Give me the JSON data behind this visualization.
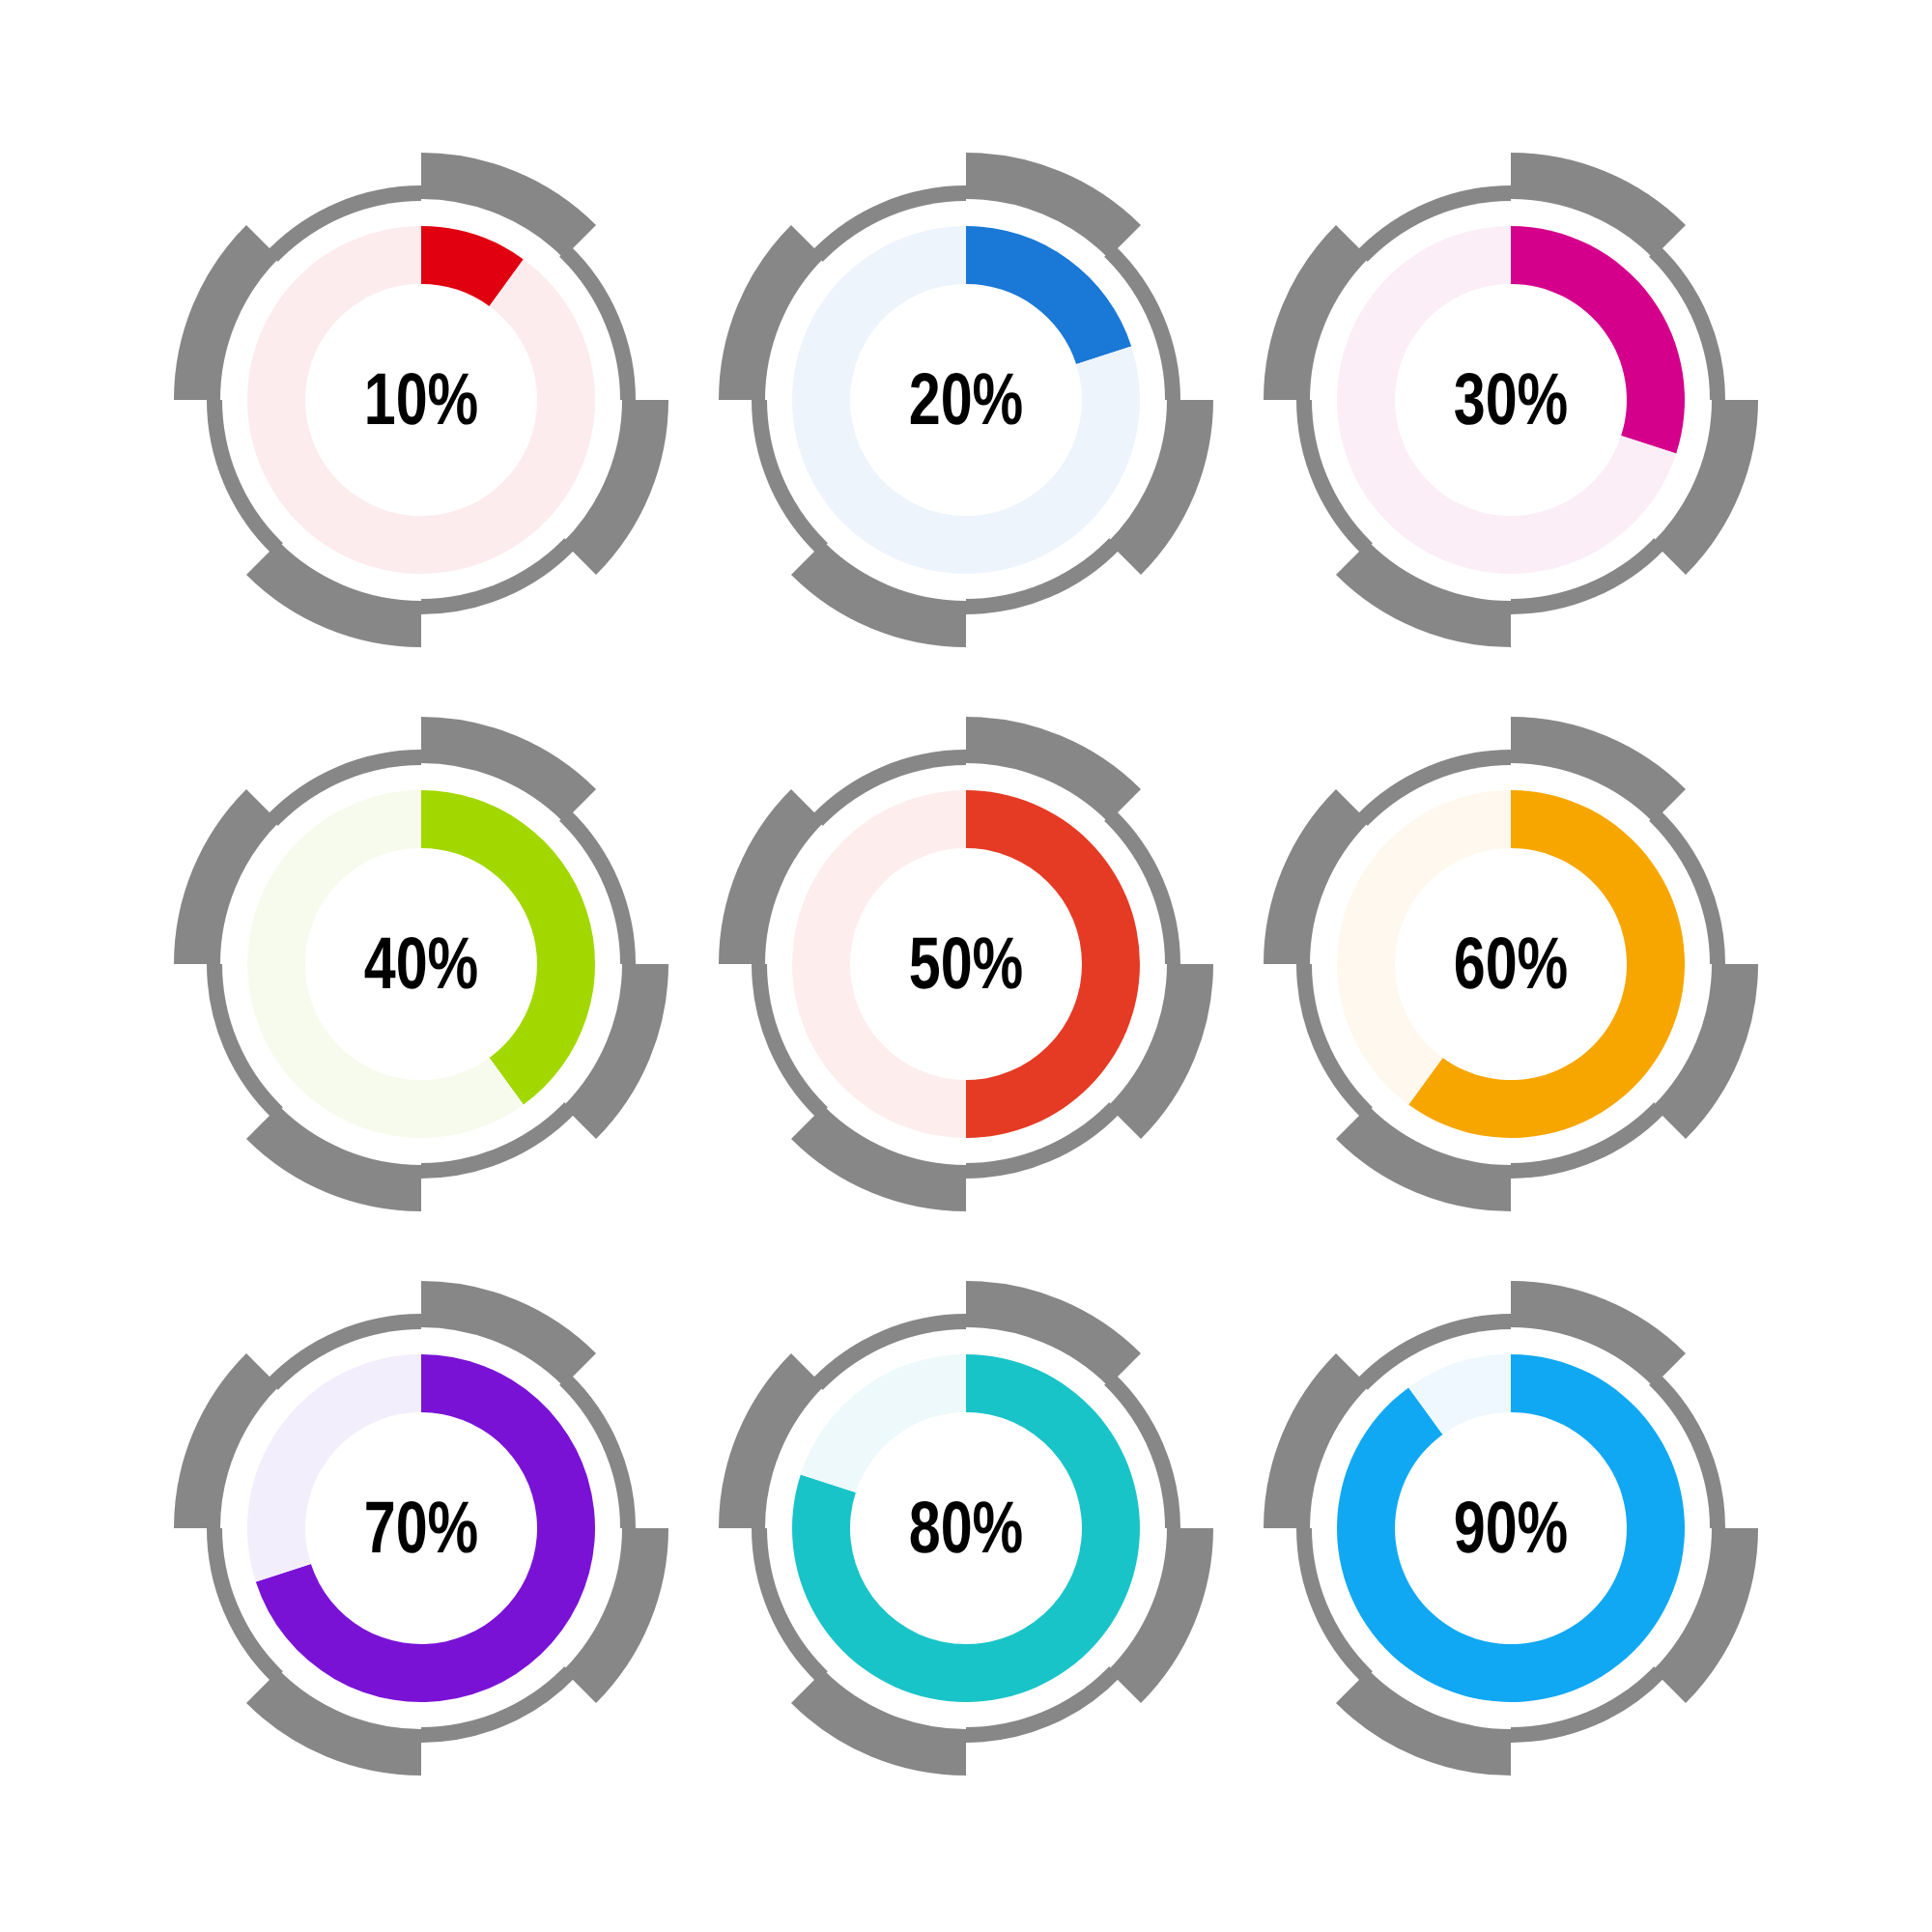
{
  "chart_data": [
    {
      "type": "donut",
      "categories": [
        null,
        null
      ],
      "values": [
        10,
        90
      ],
      "colors": [
        "#e0000f",
        "#fcecee"
      ],
      "annotations": [
        "10%"
      ]
    },
    {
      "type": "donut",
      "categories": [
        null,
        null
      ],
      "values": [
        20,
        80
      ],
      "colors": [
        "#1a78d6",
        "#eef4fc"
      ],
      "annotations": [
        "20%"
      ]
    },
    {
      "type": "donut",
      "categories": [
        null,
        null
      ],
      "values": [
        30,
        70
      ],
      "colors": [
        "#d4008c",
        "#fbeef6"
      ],
      "annotations": [
        "30%"
      ]
    },
    {
      "type": "donut",
      "categories": [
        null,
        null
      ],
      "values": [
        40,
        60
      ],
      "colors": [
        "#a2d800",
        "#f7fbee"
      ],
      "annotations": [
        "40%"
      ]
    },
    {
      "type": "donut",
      "categories": [
        null,
        null
      ],
      "values": [
        50,
        50
      ],
      "colors": [
        "#e53a24",
        "#fdeeed"
      ],
      "annotations": [
        "50%"
      ]
    },
    {
      "type": "donut",
      "categories": [
        null,
        null
      ],
      "values": [
        60,
        40
      ],
      "colors": [
        "#f7a600",
        "#fef8ee"
      ],
      "annotations": [
        "60%"
      ]
    },
    {
      "type": "donut",
      "categories": [
        null,
        null
      ],
      "values": [
        70,
        30
      ],
      "colors": [
        "#7a12d6",
        "#f3eefb"
      ],
      "annotations": [
        "70%"
      ]
    },
    {
      "type": "donut",
      "categories": [
        null,
        null
      ],
      "values": [
        80,
        20
      ],
      "colors": [
        "#19c4c8",
        "#edf9fa"
      ],
      "annotations": [
        "80%"
      ]
    },
    {
      "type": "donut",
      "categories": [
        null,
        null
      ],
      "values": [
        90,
        10
      ],
      "colors": [
        "#10a8f2",
        "#eef8fe"
      ],
      "annotations": [
        "90%"
      ]
    }
  ]
}
